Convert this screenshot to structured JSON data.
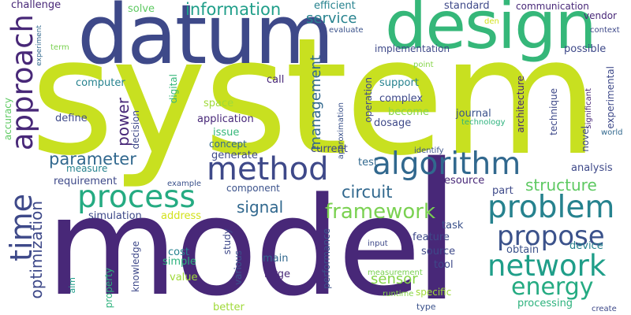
{
  "words": [
    {
      "text": "system",
      "color": "#c8e020"
    },
    {
      "text": "model",
      "color": "#482878"
    },
    {
      "text": "datum",
      "color": "#3e4989"
    },
    {
      "text": "design",
      "color": "#35b779"
    },
    {
      "text": "l",
      "color": "#482878"
    },
    {
      "text": "method",
      "color": "#3e4989"
    },
    {
      "text": "process",
      "color": "#25ab82"
    },
    {
      "text": "algorithm",
      "color": "#31688e"
    },
    {
      "text": "problem",
      "color": "#26828e"
    },
    {
      "text": "network",
      "color": "#1f9e89"
    },
    {
      "text": "propose",
      "color": "#3b528b"
    },
    {
      "text": "energy",
      "color": "#25ab82"
    },
    {
      "text": "framework",
      "color": "#7ad151"
    },
    {
      "text": "approach",
      "color": "#482878"
    },
    {
      "text": "time",
      "color": "#3e4989"
    },
    {
      "text": "information",
      "color": "#1f9e89"
    },
    {
      "text": "structure",
      "color": "#5ec962"
    },
    {
      "text": "parameter",
      "color": "#31688e"
    },
    {
      "text": "circuit",
      "color": "#31688e"
    },
    {
      "text": "signal",
      "color": "#31688e"
    },
    {
      "text": "optimization",
      "color": "#3e4989"
    },
    {
      "text": "power",
      "color": "#482878"
    },
    {
      "text": "management",
      "color": "#31688e"
    },
    {
      "text": "service",
      "color": "#26828e"
    },
    {
      "text": "sensor",
      "color": "#86d549"
    },
    {
      "text": "challenge",
      "color": "#482878"
    },
    {
      "text": "efficient",
      "color": "#26828e"
    },
    {
      "text": "solve",
      "color": "#5ec962"
    },
    {
      "text": "standard",
      "color": "#3e4989"
    },
    {
      "text": "communication",
      "color": "#482878"
    },
    {
      "text": "vendor",
      "color": "#482878"
    },
    {
      "text": "context",
      "color": "#3e4989"
    },
    {
      "text": "evaluate",
      "color": "#3b528b"
    },
    {
      "text": "den",
      "color": "#d2e21b"
    },
    {
      "text": "experiment",
      "color": "#31688e"
    },
    {
      "text": "term",
      "color": "#7ad151"
    },
    {
      "text": "implementation",
      "color": "#3e4989"
    },
    {
      "text": "possible",
      "color": "#3e4989"
    },
    {
      "text": "operation",
      "color": "#3e4989"
    },
    {
      "text": "point",
      "color": "#86d549"
    },
    {
      "text": "experimental",
      "color": "#3e4989"
    },
    {
      "text": "computer",
      "color": "#26828e"
    },
    {
      "text": "digital",
      "color": "#35b779"
    },
    {
      "text": "call",
      "color": "#482878"
    },
    {
      "text": "support",
      "color": "#26828e"
    },
    {
      "text": "architecture",
      "color": "#482878"
    },
    {
      "text": "technique",
      "color": "#3e4989"
    },
    {
      "text": "significant",
      "color": "#482878"
    },
    {
      "text": "accuracy",
      "color": "#5ec962"
    },
    {
      "text": "space",
      "color": "#a0da39"
    },
    {
      "text": "complex",
      "color": "#3e4989"
    },
    {
      "text": "define",
      "color": "#3e4989"
    },
    {
      "text": "application",
      "color": "#482878"
    },
    {
      "text": "approximation",
      "color": "#3b528b"
    },
    {
      "text": "become",
      "color": "#86d549"
    },
    {
      "text": "journal",
      "color": "#3b528b"
    },
    {
      "text": "decision",
      "color": "#3e4989"
    },
    {
      "text": "issue",
      "color": "#35b779"
    },
    {
      "text": "dosage",
      "color": "#3e4989"
    },
    {
      "text": "technology",
      "color": "#2db27d"
    },
    {
      "text": "novel",
      "color": "#3e4989"
    },
    {
      "text": "world",
      "color": "#31688e"
    },
    {
      "text": "concept",
      "color": "#31688e"
    },
    {
      "text": "generate",
      "color": "#3e4989"
    },
    {
      "text": "current",
      "color": "#3e4989"
    },
    {
      "text": "identify",
      "color": "#3b528b"
    },
    {
      "text": "test",
      "color": "#31688e"
    },
    {
      "text": "measure",
      "color": "#26828e"
    },
    {
      "text": "analysis",
      "color": "#3e4989"
    },
    {
      "text": "requirement",
      "color": "#3e4989"
    },
    {
      "text": "example",
      "color": "#3b528b"
    },
    {
      "text": "resource",
      "color": "#482878"
    },
    {
      "text": "component",
      "color": "#3b528b"
    },
    {
      "text": "part",
      "color": "#3e4989"
    },
    {
      "text": "simulation",
      "color": "#3e4989"
    },
    {
      "text": "address",
      "color": "#d2e21b"
    },
    {
      "text": "task",
      "color": "#3b528b"
    },
    {
      "text": "feature",
      "color": "#3e4989"
    },
    {
      "text": "study",
      "color": "#3e4989"
    },
    {
      "text": "input",
      "color": "#3e4989"
    },
    {
      "text": "obtain",
      "color": "#3b528b"
    },
    {
      "text": "device",
      "color": "#26828e"
    },
    {
      "text": "cost",
      "color": "#26828e"
    },
    {
      "text": "source",
      "color": "#3e4989"
    },
    {
      "text": "simple",
      "color": "#2db27d"
    },
    {
      "text": "main",
      "color": "#31688e"
    },
    {
      "text": "tool",
      "color": "#3e4989"
    },
    {
      "text": "knowledge",
      "color": "#3e4989"
    },
    {
      "text": "various",
      "color": "#3b528b"
    },
    {
      "text": "large",
      "color": "#482878"
    },
    {
      "text": "value",
      "color": "#a0da39"
    },
    {
      "text": "performance",
      "color": "#3b528b"
    },
    {
      "text": "measurement",
      "color": "#7ad151"
    },
    {
      "text": "specific",
      "color": "#a0da39"
    },
    {
      "text": "property",
      "color": "#2db27d"
    },
    {
      "text": "aim",
      "color": "#1f9e89"
    },
    {
      "text": "processing",
      "color": "#2db27d"
    },
    {
      "text": "better",
      "color": "#a0da39"
    },
    {
      "text": "runtime",
      "color": "#86d549"
    },
    {
      "text": "type",
      "color": "#3b528b"
    },
    {
      "text": "create",
      "color": "#3e4989"
    }
  ]
}
